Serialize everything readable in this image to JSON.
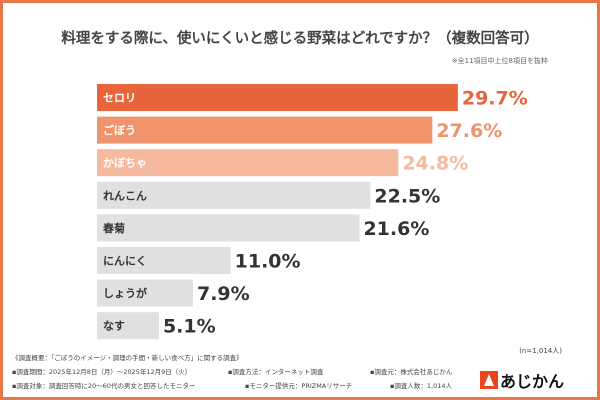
{
  "chart_data": {
    "type": "bar",
    "orientation": "horizontal",
    "title": "料理をする際に、使いにくいと感じる野菜はどれですか？（複数回答可）",
    "subtitle": "※全11項目中上位8項目を抜粋",
    "categories": [
      "セロリ",
      "ごぼう",
      "かぼちゃ",
      "れんこん",
      "春菊",
      "にんにく",
      "しょうが",
      "なす"
    ],
    "values": [
      29.7,
      27.6,
      24.8,
      22.5,
      21.6,
      11.0,
      7.9,
      5.1
    ],
    "value_labels": [
      "29.7%",
      "27.6%",
      "24.8%",
      "22.5%",
      "21.6%",
      "11.0%",
      "7.9%",
      "5.1%"
    ],
    "bar_colors": [
      "#e8643a",
      "#f0936c",
      "#f6b99e",
      "#e0e0e0",
      "#e0e0e0",
      "#e0e0e0",
      "#e0e0e0",
      "#e0e0e0"
    ],
    "label_colors": [
      "#e8643a",
      "#f0936c",
      "#f6b99e",
      "#333333",
      "#333333",
      "#333333",
      "#333333",
      "#333333"
    ],
    "xlim": [
      0,
      30
    ],
    "grid": false
  },
  "sample_size": "(n=1,014人)",
  "footer": {
    "overview": "《調査概要：「ごぼうのイメージ・調理の手間・新しい食べ方」に関する調査》",
    "period": "▪調査期間：2025年12月8日（月）～2025年12月9日（火）",
    "method": "▪調査方法：インターネット調査",
    "organizer": "▪調査元：株式会社あじかん",
    "target": "▪調査対象：調査回答時に20～60代の男女と回答したモニター",
    "provider": "▪モニター提供元：PRIZMAリサーチ",
    "count": "▪調査人数：1,014人"
  },
  "logo": {
    "text": "あじかん",
    "color": "#e8461e"
  }
}
